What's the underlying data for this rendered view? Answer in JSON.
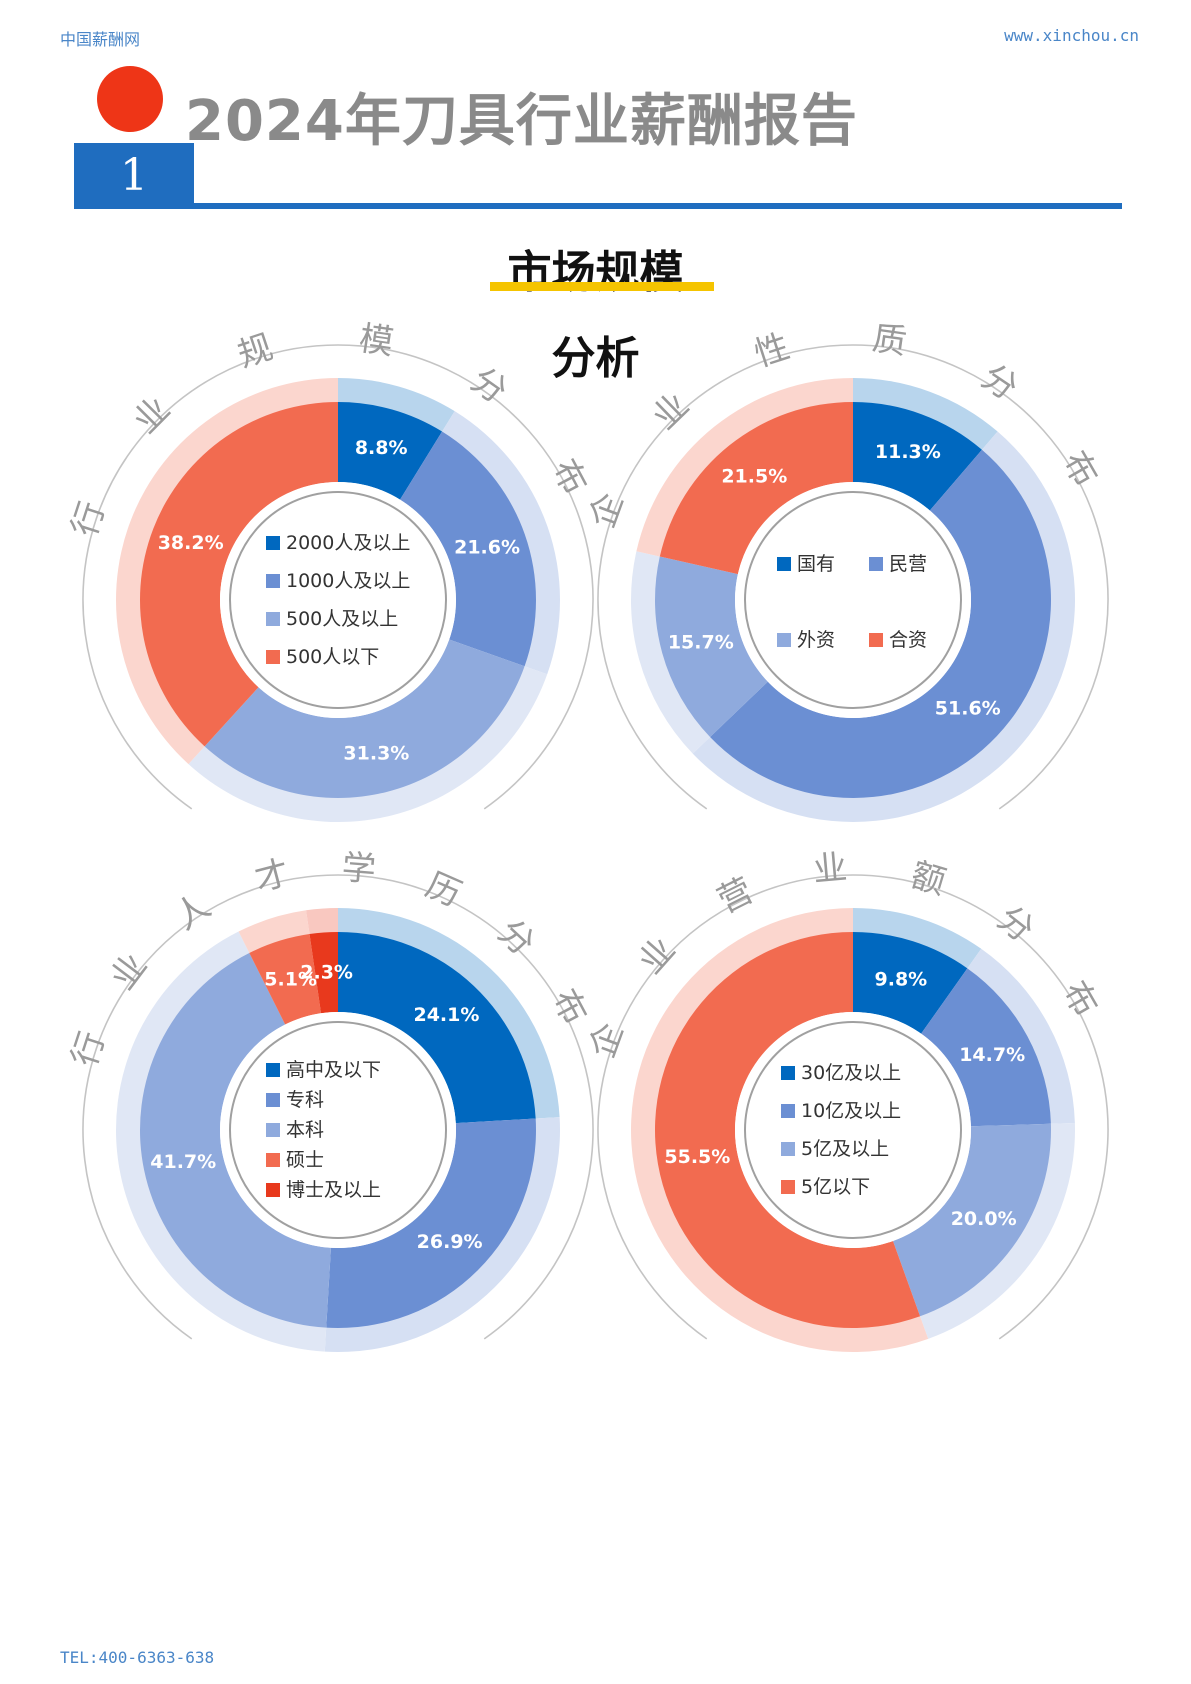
{
  "header": {
    "site_name": "中国薪酬网",
    "site_url": "www.xinchou.cn",
    "report_title": "2024年刀具行业薪酬报告",
    "chapter_number": "1"
  },
  "section": {
    "title": "市场规模",
    "subtitle": "分析"
  },
  "footer": {
    "tel": "TEL:400-6363-638"
  },
  "colors": {
    "blue_dark": "#0068bf",
    "blue_mid": "#6b8fd3",
    "blue_light": "#8faadd",
    "orange": "#f26b50",
    "red": "#e8391d"
  },
  "chart_data": [
    {
      "type": "pie",
      "title": "行业规模分布",
      "legend_layout": "column",
      "categories": [
        "2000人及以上",
        "1000人及以上",
        "500人及以上",
        "500人以下"
      ],
      "values": [
        8.8,
        21.6,
        31.3,
        38.2
      ],
      "labels": [
        "8.8%",
        "21.6%",
        "31.3%",
        "38.2%"
      ],
      "colors": [
        "#0068bf",
        "#6b8fd3",
        "#8faadd",
        "#f26b50"
      ]
    },
    {
      "type": "pie",
      "title": "企业性质分布",
      "legend_layout": "grid",
      "categories": [
        "国有",
        "民营",
        "外资",
        "合资"
      ],
      "values": [
        11.3,
        51.6,
        15.7,
        21.5
      ],
      "labels": [
        "11.3%",
        "51.6%",
        "15.7%",
        "21.5%"
      ],
      "colors": [
        "#0068bf",
        "#6b8fd3",
        "#8faadd",
        "#f26b50"
      ]
    },
    {
      "type": "pie",
      "title": "行业人才学历分布",
      "legend_layout": "column",
      "categories": [
        "高中及以下",
        "专科",
        "本科",
        "硕士",
        "博士及以上"
      ],
      "values": [
        24.1,
        26.9,
        41.7,
        5.1,
        2.3
      ],
      "labels": [
        "24.1%",
        "26.9%",
        "41.7%",
        "5.1%",
        "2.3%"
      ],
      "colors": [
        "#0068bf",
        "#6b8fd3",
        "#8faadd",
        "#f26b50",
        "#e8391d"
      ]
    },
    {
      "type": "pie",
      "title": "企业营业额分布",
      "legend_layout": "column",
      "categories": [
        "30亿及以上",
        "10亿及以上",
        "5亿及以上",
        "5亿以下"
      ],
      "values": [
        9.8,
        14.7,
        20.0,
        55.5
      ],
      "labels": [
        "9.8%",
        "14.7%",
        "20.0%",
        "55.5%"
      ],
      "colors": [
        "#0068bf",
        "#6b8fd3",
        "#8faadd",
        "#f26b50"
      ]
    }
  ]
}
